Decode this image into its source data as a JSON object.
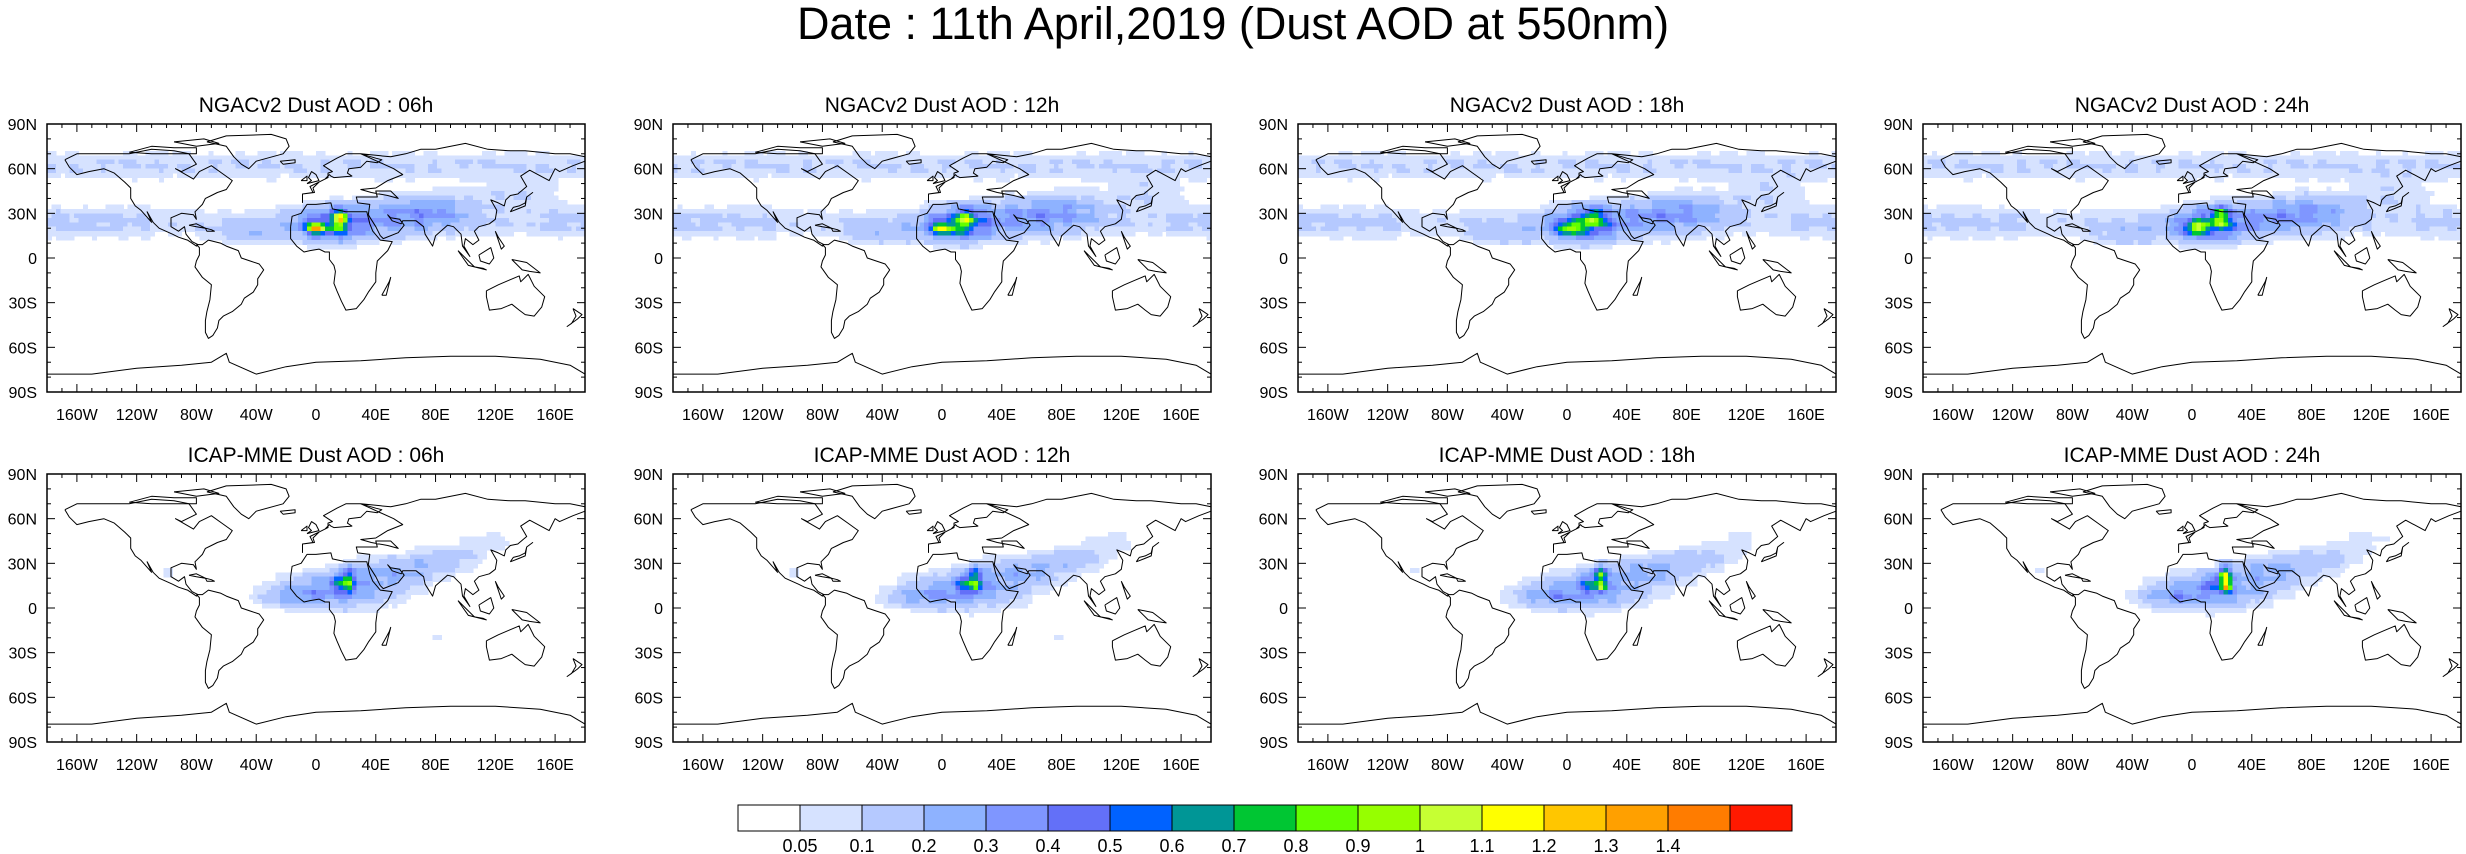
{
  "title": "Date : 11th April,2019 (Dust AOD at 550nm)",
  "map_data": {
    "projection": "cylindrical-equidistant",
    "lon_ticks": [
      "160W",
      "120W",
      "80W",
      "40W",
      "0",
      "40E",
      "80E",
      "120E",
      "160E"
    ],
    "lat_ticks": [
      "90N",
      "60N",
      "30N",
      "0",
      "30S",
      "60S",
      "90S"
    ],
    "panels": [
      {
        "title": "NGACv2 Dust AOD : 06h",
        "model": "NGACv2",
        "forecast_hour": "06h"
      },
      {
        "title": "NGACv2 Dust AOD : 12h",
        "model": "NGACv2",
        "forecast_hour": "12h"
      },
      {
        "title": "NGACv2 Dust AOD : 18h",
        "model": "NGACv2",
        "forecast_hour": "18h"
      },
      {
        "title": "NGACv2 Dust AOD : 24h",
        "model": "NGACv2",
        "forecast_hour": "24h"
      },
      {
        "title": "ICAP-MME Dust AOD : 06h",
        "model": "ICAP-MME",
        "forecast_hour": "06h"
      },
      {
        "title": "ICAP-MME Dust AOD : 12h",
        "model": "ICAP-MME",
        "forecast_hour": "12h"
      },
      {
        "title": "ICAP-MME Dust AOD : 18h",
        "model": "ICAP-MME",
        "forecast_hour": "18h"
      },
      {
        "title": "ICAP-MME Dust AOD : 24h",
        "model": "ICAP-MME",
        "forecast_hour": "24h"
      }
    ]
  },
  "colorbar": {
    "labels": [
      "0.05",
      "0.1",
      "0.2",
      "0.3",
      "0.4",
      "0.5",
      "0.6",
      "0.7",
      "0.8",
      "0.9",
      "1",
      "1.1",
      "1.2",
      "1.3",
      "1.4"
    ],
    "colors": [
      "#ffffff",
      "#d6e2ff",
      "#b5c9ff",
      "#8eb2ff",
      "#7f96ff",
      "#6370f8",
      "#0062ff",
      "#009696",
      "#00c633",
      "#63ff00",
      "#96ff00",
      "#c6ff33",
      "#ffff00",
      "#ffc600",
      "#ffa000",
      "#ff7c00",
      "#ff1900"
    ]
  }
}
